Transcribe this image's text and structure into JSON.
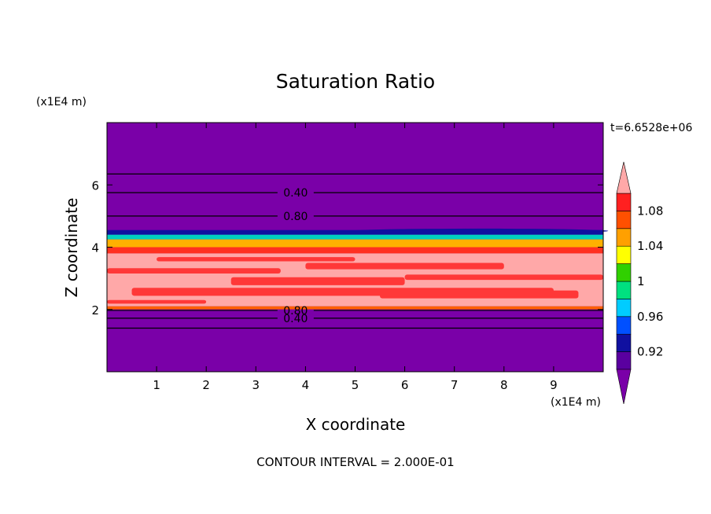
{
  "chart_data": {
    "type": "heatmap",
    "title": "Saturation Ratio",
    "xlabel": "X coordinate",
    "ylabel": "Z coordinate",
    "x_unit": "(x1E4 m)",
    "y_unit": "(x1E4 m)",
    "time_label": "t=6.6528e+06",
    "footer": "CONTOUR INTERVAL = 2.000E-01",
    "xlim": [
      0,
      10
    ],
    "ylim": [
      0,
      8
    ],
    "x_ticks": [
      "1",
      "2",
      "3",
      "4",
      "5",
      "6",
      "7",
      "8",
      "9"
    ],
    "y_ticks": [
      "2",
      "4",
      "6"
    ],
    "colorbar": {
      "levels": [
        0.9,
        0.92,
        0.94,
        0.96,
        0.98,
        1.0,
        1.02,
        1.04,
        1.06,
        1.08,
        1.1
      ],
      "tick_labels": [
        "0.92",
        "0.96",
        "1",
        "1.04",
        "1.08"
      ],
      "colors": [
        "#5a00a0",
        "#1010a0",
        "#0050ff",
        "#00ccff",
        "#00e080",
        "#30d000",
        "#ffff00",
        "#ffa000",
        "#ff5000",
        "#ff2020"
      ],
      "under_color": "#7a00a8",
      "over_color": "#ffa8a8"
    },
    "bands": [
      {
        "z_bottom": 4.55,
        "z_top": 8.0,
        "value": "<0.90"
      },
      {
        "z_bottom": 4.4,
        "z_top": 4.55,
        "value": "0.90-0.96"
      },
      {
        "z_bottom": 4.25,
        "z_top": 4.4,
        "value": "0.96-1.00"
      },
      {
        "z_bottom": 4.0,
        "z_top": 4.25,
        "value": "1.00-1.06"
      },
      {
        "z_bottom": 3.8,
        "z_top": 4.0,
        "value": "1.06-1.10"
      },
      {
        "z_bottom": 2.1,
        "z_top": 3.8,
        "value": ">1.10"
      },
      {
        "z_bottom": 2.0,
        "z_top": 2.1,
        "value": "1.04-1.10"
      },
      {
        "z_bottom": 0.0,
        "z_top": 2.0,
        "value": "<0.90"
      }
    ],
    "contour_lines": [
      {
        "z": 6.35
      },
      {
        "z": 5.75,
        "label": "0.40",
        "label_x": 3.5
      },
      {
        "z": 5.0,
        "label": "0.80",
        "label_x": 3.5
      },
      {
        "z": 1.97,
        "label": "0.80",
        "label_x": 3.5
      },
      {
        "z": 1.72,
        "label": "0.40",
        "label_x": 3.5
      },
      {
        "z": 1.4
      }
    ]
  }
}
